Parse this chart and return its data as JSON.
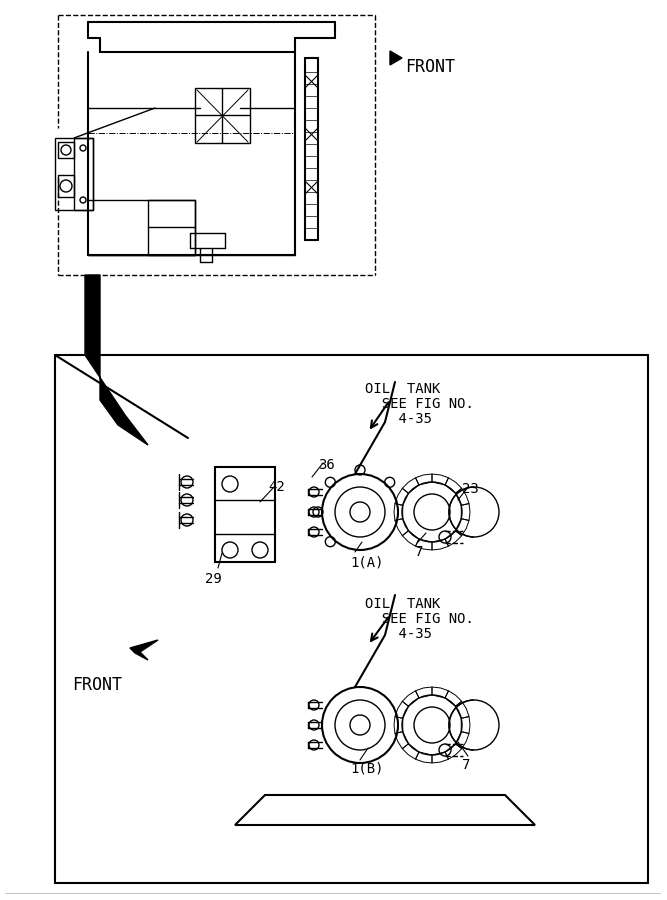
{
  "bg_color": "#ffffff",
  "line_color": "#000000",
  "gray_line": "#aaaaaa",
  "fig_width": 6.67,
  "fig_height": 9.0,
  "annotations": {
    "front_top": "FRONT",
    "oil_tank_1_line1": "OIL  TANK",
    "oil_tank_1_line2": "  SEE FIG NO.",
    "oil_tank_1_line3": "    4-35",
    "oil_tank_2_line1": "OIL  TANK",
    "oil_tank_2_line2": "  SEE FIG NO.",
    "oil_tank_2_line3": "    4-35",
    "front_bottom": "FRONT",
    "part_36": "36",
    "part_42": "42",
    "part_29": "29",
    "part_23": "23",
    "part_7a": "7",
    "part_1a": "1(A)",
    "part_1b": "1(B)",
    "part_7b": "7"
  }
}
